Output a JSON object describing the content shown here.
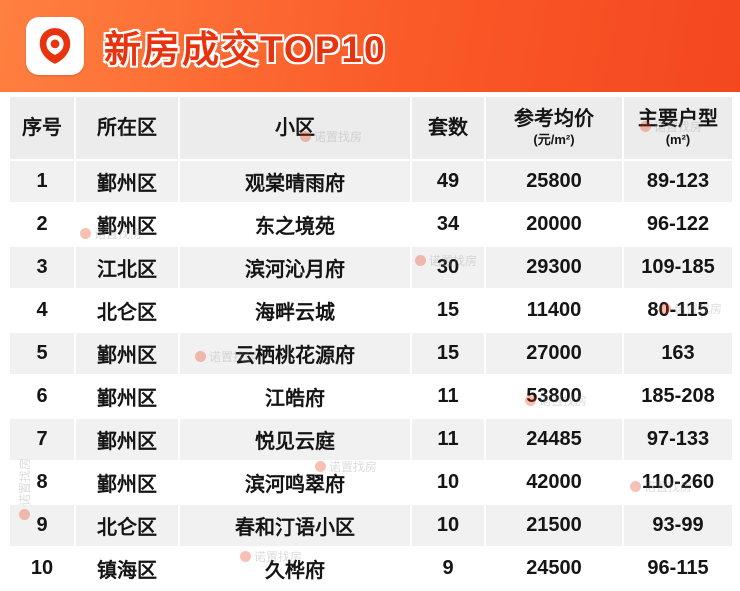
{
  "banner": {
    "title": "新房成交TOP10"
  },
  "table": {
    "columns": [
      {
        "label": "序号",
        "sub": ""
      },
      {
        "label": "所在区",
        "sub": ""
      },
      {
        "label": "小区",
        "sub": ""
      },
      {
        "label": "套数",
        "sub": ""
      },
      {
        "label": "参考均价",
        "sub": "(元/m²)"
      },
      {
        "label": "主要户型",
        "sub": "(m²)"
      }
    ],
    "rows": [
      [
        "1",
        "鄞州区",
        "观棠晴雨府",
        "49",
        "25800",
        "89-123"
      ],
      [
        "2",
        "鄞州区",
        "东之境苑",
        "34",
        "20000",
        "96-122"
      ],
      [
        "3",
        "江北区",
        "滨河沁月府",
        "30",
        "29300",
        "109-185"
      ],
      [
        "4",
        "北仑区",
        "海畔云城",
        "15",
        "11400",
        "80-115"
      ],
      [
        "5",
        "鄞州区",
        "云栖桃花源府",
        "15",
        "27000",
        "163"
      ],
      [
        "6",
        "鄞州区",
        "江皓府",
        "11",
        "53800",
        "185-208"
      ],
      [
        "7",
        "鄞州区",
        "悦见云庭",
        "11",
        "24485",
        "97-133"
      ],
      [
        "8",
        "鄞州区",
        "滨河鸣翠府",
        "10",
        "42000",
        "110-260"
      ],
      [
        "9",
        "北仑区",
        "春和汀语小区",
        "10",
        "21500",
        "93-99"
      ],
      [
        "10",
        "镇海区",
        "久桦府",
        "9",
        "24500",
        "96-115"
      ]
    ]
  },
  "watermark": {
    "text": "诺置找房"
  },
  "colors": {
    "banner_start": "#ff8040",
    "banner_end": "#f4471f",
    "title_red": "#e8330f",
    "header_bg": "#ececec",
    "row_alt_bg": "#f1f1f1",
    "text": "#151515"
  },
  "chart_data": {
    "type": "table",
    "title": "新房成交TOP10",
    "columns": [
      "序号",
      "所在区",
      "小区",
      "套数",
      "参考均价(元/m²)",
      "主要户型(m²)"
    ],
    "rows": [
      [
        "1",
        "鄞州区",
        "观棠晴雨府",
        49,
        25800,
        "89-123"
      ],
      [
        "2",
        "鄞州区",
        "东之境苑",
        34,
        20000,
        "96-122"
      ],
      [
        "3",
        "江北区",
        "滨河沁月府",
        30,
        29300,
        "109-185"
      ],
      [
        "4",
        "北仑区",
        "海畔云城",
        15,
        11400,
        "80-115"
      ],
      [
        "5",
        "鄞州区",
        "云栖桃花源府",
        15,
        27000,
        "163"
      ],
      [
        "6",
        "鄞州区",
        "江皓府",
        11,
        53800,
        "185-208"
      ],
      [
        "7",
        "鄞州区",
        "悦见云庭",
        11,
        24485,
        "97-133"
      ],
      [
        "8",
        "鄞州区",
        "滨河鸣翠府",
        10,
        42000,
        "110-260"
      ],
      [
        "9",
        "北仑区",
        "春和汀语小区",
        10,
        21500,
        "93-99"
      ],
      [
        "10",
        "镇海区",
        "久桦府",
        9,
        24500,
        "96-115"
      ]
    ]
  }
}
